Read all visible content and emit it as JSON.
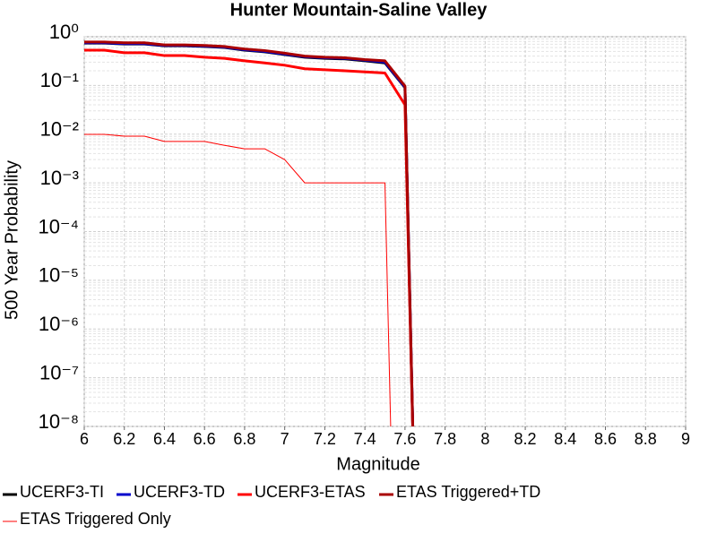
{
  "chart_data": {
    "type": "line",
    "title": "Hunter Mountain-Saline Valley",
    "xlabel": "Magnitude",
    "ylabel": "500 Year Probability",
    "x": [
      6.0,
      6.1,
      6.2,
      6.3,
      6.4,
      6.5,
      6.6,
      6.7,
      6.8,
      6.9,
      7.0,
      7.1,
      7.2,
      7.3,
      7.4,
      7.5,
      7.6,
      7.65
    ],
    "series": [
      {
        "name": "UCERF3-TI",
        "color": "#000000",
        "width": 3,
        "values": [
          0.74,
          0.74,
          0.71,
          0.71,
          0.65,
          0.65,
          0.63,
          0.6,
          0.53,
          0.49,
          0.43,
          0.38,
          0.36,
          0.35,
          0.32,
          0.29,
          0.09,
          1e-10
        ]
      },
      {
        "name": "UCERF3-TD",
        "color": "#0000cc",
        "width": 3,
        "values": [
          0.75,
          0.75,
          0.72,
          0.72,
          0.66,
          0.66,
          0.64,
          0.61,
          0.54,
          0.5,
          0.44,
          0.39,
          0.37,
          0.36,
          0.33,
          0.3,
          0.092,
          1e-10
        ]
      },
      {
        "name": "UCERF3-ETAS",
        "color": "#ff0000",
        "width": 3,
        "values": [
          0.53,
          0.53,
          0.47,
          0.47,
          0.41,
          0.41,
          0.38,
          0.36,
          0.32,
          0.29,
          0.26,
          0.22,
          0.21,
          0.2,
          0.19,
          0.18,
          0.04,
          1e-10
        ]
      },
      {
        "name": "ETAS Triggered+TD",
        "color": "#aa0000",
        "width": 3,
        "values": [
          0.78,
          0.78,
          0.75,
          0.75,
          0.68,
          0.68,
          0.66,
          0.63,
          0.56,
          0.52,
          0.46,
          0.4,
          0.38,
          0.37,
          0.34,
          0.32,
          0.097,
          1e-10
        ]
      },
      {
        "name": "ETAS Triggered Only",
        "color": "#ff0000",
        "width": 1,
        "x": [
          6.0,
          6.1,
          6.2,
          6.3,
          6.4,
          6.5,
          6.6,
          6.7,
          6.8,
          6.9,
          7.0,
          7.1,
          7.2,
          7.3,
          7.4,
          7.5,
          7.54
        ],
        "values": [
          0.0099,
          0.0099,
          0.0091,
          0.0091,
          0.0071,
          0.0071,
          0.0071,
          0.0059,
          0.005,
          0.005,
          0.003,
          0.001,
          0.001,
          0.001,
          0.001,
          0.001,
          1e-10
        ]
      }
    ],
    "xlim": [
      6,
      9
    ],
    "xticks": [
      6,
      6.2,
      6.4,
      6.6,
      6.8,
      7,
      7.2,
      7.4,
      7.6,
      7.8,
      8,
      8.2,
      8.4,
      8.6,
      8.8,
      9
    ],
    "ylim": [
      1e-08,
      1
    ],
    "log_y": true,
    "yticks": [
      {
        "value": 1,
        "label": "10⁰"
      },
      {
        "value": 0.1,
        "label": "10⁻¹"
      },
      {
        "value": 0.01,
        "label": "10⁻²"
      },
      {
        "value": 0.001,
        "label": "10⁻³"
      },
      {
        "value": 0.0001,
        "label": "10⁻⁴"
      },
      {
        "value": 1e-05,
        "label": "10⁻⁵"
      },
      {
        "value": 1e-06,
        "label": "10⁻⁶"
      },
      {
        "value": 1e-07,
        "label": "10⁻⁷"
      },
      {
        "value": 1e-08,
        "label": "10⁻⁸"
      }
    ],
    "grid": true,
    "legend": "bottom"
  }
}
